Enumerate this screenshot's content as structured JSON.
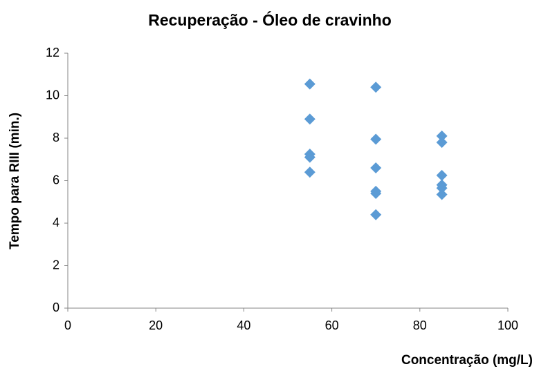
{
  "chart_data": {
    "type": "scatter",
    "title": "Recuperação - Óleo de cravinho",
    "x_label": "Concentração (mg/L)",
    "y_label": "Tempo para RIII (min.)",
    "series": [
      {
        "name": "Tempo para RIII",
        "color": "#5b9bd5",
        "x": [
          55,
          55,
          55,
          55,
          55,
          70,
          70,
          70,
          70,
          70,
          70,
          85,
          85,
          85,
          85,
          85,
          85
        ],
        "values": [
          10.55,
          8.9,
          7.25,
          7.1,
          6.4,
          10.4,
          7.95,
          6.6,
          5.5,
          5.4,
          4.4,
          8.1,
          7.8,
          6.25,
          5.8,
          5.65,
          5.35
        ]
      }
    ],
    "xlim": [
      0,
      100
    ],
    "xticks": [
      0,
      20,
      40,
      60,
      80,
      100
    ],
    "ylim": [
      0,
      12
    ],
    "yticks": [
      0,
      2,
      4,
      6,
      8,
      10,
      12
    ],
    "grid": false
  }
}
